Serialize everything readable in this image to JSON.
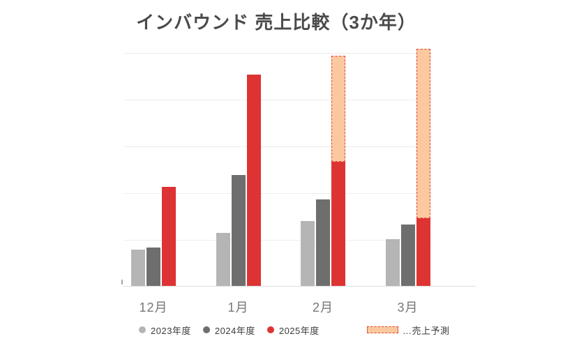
{
  "title": "インバウンド 売上比較（3か年）",
  "chart_data": {
    "type": "bar",
    "title": "インバウンド 売上比較（3か年）",
    "categories": [
      "12月",
      "1月",
      "2月",
      "3月"
    ],
    "series": [
      {
        "name": "2023年度",
        "color": "#b5b5b5",
        "values": [
          79,
          115,
          140,
          101
        ]
      },
      {
        "name": "2024年度",
        "color": "#6e6e6e",
        "values": [
          84,
          239,
          187,
          133
        ]
      },
      {
        "name": "2025年度",
        "color": "#de3333",
        "values": [
          213,
          454,
          267,
          146
        ]
      }
    ],
    "forecast": {
      "label": "…売上予測",
      "applies_to_series": "2025年度",
      "totals": [
        null,
        null,
        494,
        509
      ],
      "fill_color": "#fbc8a0",
      "border_color": "#e2472f"
    },
    "xlabel": "",
    "ylabel": "",
    "y_tick_labels": "none",
    "ylim": [
      0,
      500
    ],
    "gridline_step": 100,
    "grid": "horizontal",
    "legend_position": "bottom",
    "colors": {
      "title_text": "#4a4a4a",
      "axis_label_text": "#767676",
      "legend_text": "#3b3b3b",
      "gridline": "#ededed",
      "baseline": "#dcdcdc",
      "background": "#ffffff"
    }
  }
}
